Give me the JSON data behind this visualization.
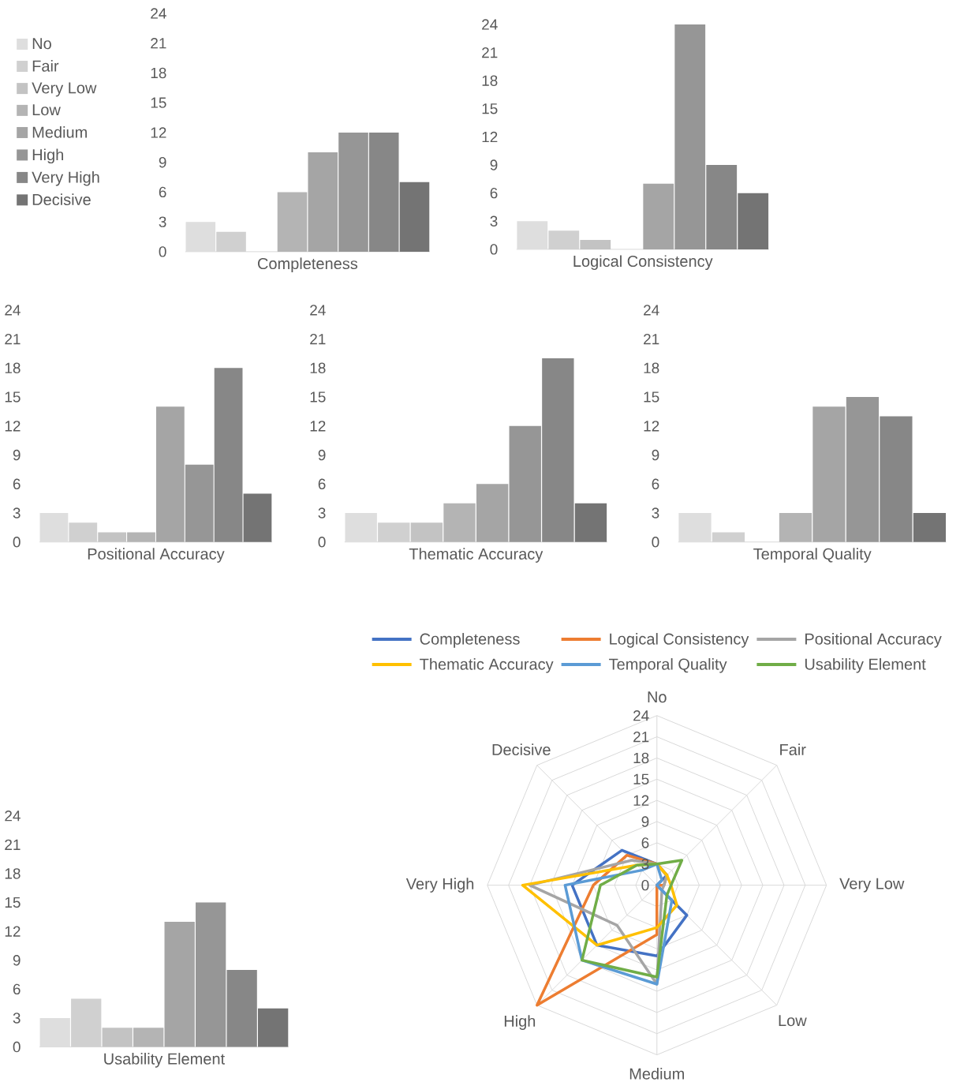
{
  "chart_data": [
    {
      "type": "bar",
      "xlabel": "Completeness",
      "categories": [
        null,
        null,
        null,
        null,
        null,
        null,
        null,
        null
      ],
      "ylim": [
        0,
        24
      ],
      "yticks": [
        0,
        3,
        6,
        9,
        12,
        15,
        18,
        21,
        24
      ],
      "tick_labels": "y",
      "legend": "left",
      "series": [
        {
          "name": "No",
          "color": "#dedede",
          "values": [
            3,
            null,
            null,
            null,
            null,
            null,
            null,
            null
          ]
        },
        {
          "name": "Fair",
          "color": "#d0d0d0",
          "values": [
            null,
            2,
            null,
            null,
            null,
            null,
            null,
            null
          ]
        },
        {
          "name": "Very Low",
          "color": "#c3c3c3",
          "values": [
            null,
            null,
            0,
            null,
            null,
            null,
            null,
            null
          ]
        },
        {
          "name": "Low",
          "color": "#b4b4b4",
          "values": [
            null,
            null,
            null,
            6,
            null,
            null,
            null,
            null
          ]
        },
        {
          "name": "Medium",
          "color": "#a5a5a5",
          "values": [
            null,
            null,
            null,
            null,
            10,
            null,
            null,
            null
          ]
        },
        {
          "name": "High",
          "color": "#969696",
          "values": [
            null,
            null,
            null,
            null,
            null,
            12,
            null,
            null
          ]
        },
        {
          "name": "Very High",
          "color": "#878787",
          "values": [
            null,
            null,
            null,
            null,
            null,
            null,
            12,
            null
          ]
        },
        {
          "name": "Decisive",
          "color": "#747474",
          "values": [
            null,
            null,
            null,
            null,
            null,
            null,
            null,
            7
          ]
        }
      ]
    },
    {
      "type": "bar",
      "xlabel": "Logical Consistency",
      "categories": [
        null,
        null,
        null,
        null,
        null,
        null,
        null,
        null
      ],
      "ylim": [
        0,
        24
      ],
      "yticks": [
        0,
        3,
        6,
        9,
        12,
        15,
        18,
        21,
        24
      ],
      "tick_labels": "y",
      "series": [
        {
          "color": "#dedede",
          "values": [
            3,
            null,
            null,
            null,
            null,
            null,
            null,
            null
          ]
        },
        {
          "color": "#d0d0d0",
          "values": [
            null,
            2,
            null,
            null,
            null,
            null,
            null,
            null
          ]
        },
        {
          "color": "#c3c3c3",
          "values": [
            null,
            null,
            1,
            null,
            null,
            null,
            null,
            null
          ]
        },
        {
          "color": "#b4b4b4",
          "values": [
            null,
            null,
            null,
            0,
            null,
            null,
            null,
            null
          ]
        },
        {
          "color": "#a5a5a5",
          "values": [
            null,
            null,
            null,
            null,
            7,
            null,
            null,
            null
          ]
        },
        {
          "color": "#969696",
          "values": [
            null,
            null,
            null,
            null,
            null,
            24,
            null,
            null
          ]
        },
        {
          "color": "#878787",
          "values": [
            null,
            null,
            null,
            null,
            null,
            null,
            9,
            null
          ]
        },
        {
          "color": "#747474",
          "values": [
            null,
            null,
            null,
            null,
            null,
            null,
            null,
            6
          ]
        }
      ]
    },
    {
      "type": "bar",
      "xlabel": "Positional Accuracy",
      "categories": [
        null,
        null,
        null,
        null,
        null,
        null,
        null,
        null
      ],
      "ylim": [
        0,
        24
      ],
      "yticks": [
        0,
        3,
        6,
        9,
        12,
        15,
        18,
        21,
        24
      ],
      "tick_labels": "y",
      "series": [
        {
          "color": "#dedede",
          "values": [
            3,
            null,
            null,
            null,
            null,
            null,
            null,
            null
          ]
        },
        {
          "color": "#d0d0d0",
          "values": [
            null,
            2,
            null,
            null,
            null,
            null,
            null,
            null
          ]
        },
        {
          "color": "#c3c3c3",
          "values": [
            null,
            null,
            1,
            null,
            null,
            null,
            null,
            null
          ]
        },
        {
          "color": "#b4b4b4",
          "values": [
            null,
            null,
            null,
            1,
            null,
            null,
            null,
            null
          ]
        },
        {
          "color": "#a5a5a5",
          "values": [
            null,
            null,
            null,
            null,
            14,
            null,
            null,
            null
          ]
        },
        {
          "color": "#969696",
          "values": [
            null,
            null,
            null,
            null,
            null,
            8,
            null,
            null
          ]
        },
        {
          "color": "#878787",
          "values": [
            null,
            null,
            null,
            null,
            null,
            null,
            18,
            null
          ]
        },
        {
          "color": "#747474",
          "values": [
            null,
            null,
            null,
            null,
            null,
            null,
            null,
            5
          ]
        }
      ]
    },
    {
      "type": "bar",
      "xlabel": "Thematic Accuracy",
      "categories": [
        null,
        null,
        null,
        null,
        null,
        null,
        null,
        null
      ],
      "ylim": [
        0,
        24
      ],
      "yticks": [
        0,
        3,
        6,
        9,
        12,
        15,
        18,
        21,
        24
      ],
      "tick_labels": "y",
      "series": [
        {
          "color": "#dedede",
          "values": [
            3,
            null,
            null,
            null,
            null,
            null,
            null,
            null
          ]
        },
        {
          "color": "#d0d0d0",
          "values": [
            null,
            2,
            null,
            null,
            null,
            null,
            null,
            null
          ]
        },
        {
          "color": "#c3c3c3",
          "values": [
            null,
            null,
            2,
            null,
            null,
            null,
            null,
            null
          ]
        },
        {
          "color": "#b4b4b4",
          "values": [
            null,
            null,
            null,
            4,
            null,
            null,
            null,
            null
          ]
        },
        {
          "color": "#a5a5a5",
          "values": [
            null,
            null,
            null,
            null,
            6,
            null,
            null,
            null
          ]
        },
        {
          "color": "#969696",
          "values": [
            null,
            null,
            null,
            null,
            null,
            12,
            null,
            null
          ]
        },
        {
          "color": "#878787",
          "values": [
            null,
            null,
            null,
            null,
            null,
            null,
            19,
            null
          ]
        },
        {
          "color": "#747474",
          "values": [
            null,
            null,
            null,
            null,
            null,
            null,
            null,
            4
          ]
        }
      ]
    },
    {
      "type": "bar",
      "xlabel": "Temporal Quality",
      "categories": [
        null,
        null,
        null,
        null,
        null,
        null,
        null,
        null
      ],
      "ylim": [
        0,
        24
      ],
      "yticks": [
        0,
        3,
        6,
        9,
        12,
        15,
        18,
        21,
        24
      ],
      "tick_labels": "y",
      "series": [
        {
          "color": "#dedede",
          "values": [
            3,
            null,
            null,
            null,
            null,
            null,
            null,
            null
          ]
        },
        {
          "color": "#d0d0d0",
          "values": [
            null,
            1,
            null,
            null,
            null,
            null,
            null,
            null
          ]
        },
        {
          "color": "#c3c3c3",
          "values": [
            null,
            null,
            0,
            null,
            null,
            null,
            null,
            null
          ]
        },
        {
          "color": "#b4b4b4",
          "values": [
            null,
            null,
            null,
            3,
            null,
            null,
            null,
            null
          ]
        },
        {
          "color": "#a5a5a5",
          "values": [
            null,
            null,
            null,
            null,
            14,
            null,
            null,
            null
          ]
        },
        {
          "color": "#969696",
          "values": [
            null,
            null,
            null,
            null,
            null,
            15,
            null,
            null
          ]
        },
        {
          "color": "#878787",
          "values": [
            null,
            null,
            null,
            null,
            null,
            null,
            13,
            null
          ]
        },
        {
          "color": "#747474",
          "values": [
            null,
            null,
            null,
            null,
            null,
            null,
            null,
            3
          ]
        }
      ]
    },
    {
      "type": "bar",
      "xlabel": "Usability Element",
      "categories": [
        null,
        null,
        null,
        null,
        null,
        null,
        null,
        null
      ],
      "ylim": [
        0,
        24
      ],
      "yticks": [
        0,
        3,
        6,
        9,
        12,
        15,
        18,
        21,
        24
      ],
      "tick_labels": "y",
      "series": [
        {
          "color": "#dedede",
          "values": [
            3,
            null,
            null,
            null,
            null,
            null,
            null,
            null
          ]
        },
        {
          "color": "#d0d0d0",
          "values": [
            null,
            5,
            null,
            null,
            null,
            null,
            null,
            null
          ]
        },
        {
          "color": "#c3c3c3",
          "values": [
            null,
            null,
            2,
            null,
            null,
            null,
            null,
            null
          ]
        },
        {
          "color": "#b4b4b4",
          "values": [
            null,
            null,
            null,
            2,
            null,
            null,
            null,
            null
          ]
        },
        {
          "color": "#a5a5a5",
          "values": [
            null,
            null,
            null,
            null,
            13,
            null,
            null,
            null
          ]
        },
        {
          "color": "#969696",
          "values": [
            null,
            null,
            null,
            null,
            null,
            15,
            null,
            null
          ]
        },
        {
          "color": "#878787",
          "values": [
            null,
            null,
            null,
            null,
            null,
            null,
            8,
            null
          ]
        },
        {
          "color": "#747474",
          "values": [
            null,
            null,
            null,
            null,
            null,
            null,
            null,
            4
          ]
        }
      ]
    },
    {
      "type": "radar",
      "categories": [
        "No",
        "Fair",
        "Very Low",
        "Low",
        "Medium",
        "High",
        "Very High",
        "Decisive"
      ],
      "ylim": [
        0,
        24
      ],
      "yticks": [
        0,
        3,
        6,
        9,
        12,
        15,
        18,
        21,
        24
      ],
      "grid": true,
      "legend": "top",
      "marker": "none",
      "series": [
        {
          "name": "Completeness",
          "color": "#4472c4",
          "values": [
            3,
            2,
            0,
            6,
            10,
            12,
            12,
            7
          ]
        },
        {
          "name": "Logical Consistency",
          "color": "#ed7d31",
          "values": [
            3,
            2,
            1,
            0,
            7,
            24,
            9,
            6
          ]
        },
        {
          "name": "Positional Accuracy",
          "color": "#a5a5a5",
          "values": [
            3,
            2,
            1,
            1,
            14,
            8,
            18,
            5
          ]
        },
        {
          "name": "Thematic Accuracy",
          "color": "#ffc000",
          "values": [
            3,
            2,
            2,
            4,
            6,
            12,
            19,
            4
          ]
        },
        {
          "name": "Temporal Quality",
          "color": "#5b9bd5",
          "values": [
            3,
            1,
            0,
            3,
            14,
            15,
            13,
            3
          ]
        },
        {
          "name": "Usability Element",
          "color": "#70ad47",
          "values": [
            3,
            5,
            2,
            2,
            13,
            15,
            8,
            4
          ]
        }
      ]
    }
  ]
}
